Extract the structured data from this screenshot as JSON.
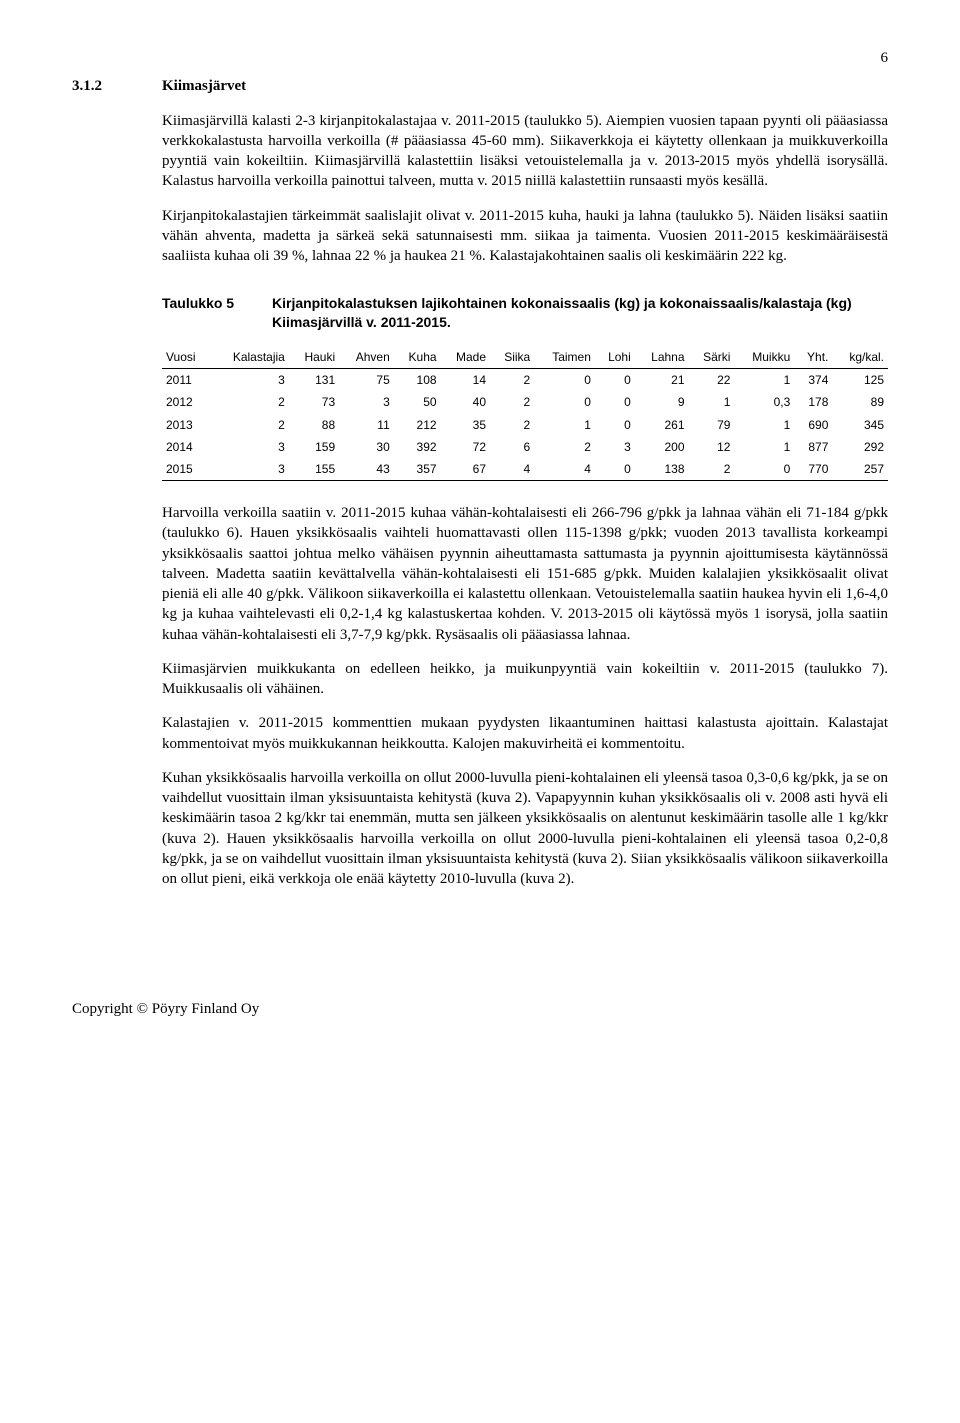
{
  "page_number": "6",
  "section": {
    "number": "3.1.2",
    "title": "Kiimasjärvet"
  },
  "paragraphs": {
    "p1": "Kiimasjärvillä kalasti 2-3 kirjanpitokalastajaa v. 2011-2015 (taulukko 5). Aiempien vuosien tapaan pyynti oli pääasiassa verkkokalastusta harvoilla verkoilla (# pääasiassa 45-60 mm). Siikaverkkoja ei käytetty ollenkaan ja muikkuverkoilla pyyntiä vain kokeiltiin. Kiimasjärvillä kalastettiin lisäksi vetouistelemalla ja v. 2013-2015 myös yhdellä isorysällä. Kalastus harvoilla verkoilla painottui talveen, mutta v. 2015 niillä kalastettiin runsaasti myös kesällä.",
    "p2": "Kirjanpitokalastajien tärkeimmät saalislajit olivat v. 2011-2015 kuha, hauki ja lahna (taulukko 5). Näiden lisäksi saatiin vähän ahventa, madetta ja särkeä sekä satunnaisesti mm. siikaa ja taimenta. Vuosien 2011-2015 keskimääräisestä saaliista kuhaa oli 39 %, lahnaa 22 % ja haukea 21 %. Kalastajakohtainen saalis oli keskimäärin 222 kg.",
    "p3": "Harvoilla verkoilla saatiin v. 2011-2015 kuhaa vähän-kohtalaisesti eli 266-796 g/pkk ja lahnaa vähän eli 71-184 g/pkk (taulukko 6). Hauen yksikkösaalis vaihteli huomattavasti ollen 115-1398 g/pkk; vuoden 2013 tavallista korkeampi yksikkösaalis saattoi johtua melko vähäisen pyynnin aiheuttamasta sattumasta ja pyynnin ajoittumisesta käytännössä talveen. Madetta saatiin kevättalvella vähän-kohtalaisesti eli 151-685 g/pkk. Muiden kalalajien yksikkösaalit olivat pieniä eli alle 40 g/pkk. Välikoon siikaverkoilla ei kalastettu ollenkaan. Vetouistelemalla saatiin haukea hyvin eli 1,6-4,0 kg ja kuhaa vaihtelevasti eli 0,2-1,4 kg kalastuskertaa kohden. V. 2013-2015 oli käytössä myös 1 isorysä, jolla saatiin kuhaa vähän-kohtalaisesti eli 3,7-7,9 kg/pkk. Rysäsaalis oli pääasiassa lahnaa.",
    "p4": "Kiimasjärvien muikkukanta on edelleen heikko, ja muikunpyyntiä vain kokeiltiin v. 2011-2015 (taulukko 7). Muikkusaalis oli vähäinen.",
    "p5": "Kalastajien v. 2011-2015 kommenttien mukaan pyydysten likaantuminen haittasi kalastusta ajoittain. Kalastajat kommentoivat myös muikkukannan heikkoutta. Kalojen makuvirheitä ei kommentoitu.",
    "p6": "Kuhan yksikkösaalis harvoilla verkoilla on ollut 2000-luvulla pieni-kohtalainen eli yleensä tasoa 0,3-0,6 kg/pkk, ja se on vaihdellut vuosittain ilman yksisuuntaista kehitystä (kuva 2). Vapapyynnin kuhan yksikkösaalis oli v. 2008 asti hyvä eli keskimäärin tasoa 2 kg/kkr tai enemmän, mutta sen jälkeen yksikkösaalis on alentunut keskimäärin tasolle alle 1 kg/kkr (kuva 2). Hauen yksikkösaalis harvoilla verkoilla on ollut 2000-luvulla pieni-kohtalainen eli yleensä tasoa 0,2-0,8 kg/pkk, ja se on vaihdellut vuosittain ilman yksisuuntaista kehitystä (kuva 2). Siian yksikkösaalis välikoon siikaverkoilla on ollut pieni, eikä verkkoja ole enää käytetty 2010-luvulla (kuva 2)."
  },
  "table5": {
    "label": "Taulukko 5",
    "caption": "Kirjanpitokalastuksen lajikohtainen kokonaissaalis (kg) ja kokonaissaalis/kalastaja (kg) Kiimasjärvillä v. 2011-2015.",
    "columns": [
      "Vuosi",
      "Kalastajia",
      "Hauki",
      "Ahven",
      "Kuha",
      "Made",
      "Siika",
      "Taimen",
      "Lohi",
      "Lahna",
      "Särki",
      "Muikku",
      "Yht.",
      "kg/kal."
    ],
    "rows": [
      [
        "2011",
        "3",
        "131",
        "75",
        "108",
        "14",
        "2",
        "0",
        "0",
        "21",
        "22",
        "1",
        "374",
        "125"
      ],
      [
        "2012",
        "2",
        "73",
        "3",
        "50",
        "40",
        "2",
        "0",
        "0",
        "9",
        "1",
        "0,3",
        "178",
        "89"
      ],
      [
        "2013",
        "2",
        "88",
        "11",
        "212",
        "35",
        "2",
        "1",
        "0",
        "261",
        "79",
        "1",
        "690",
        "345"
      ],
      [
        "2014",
        "3",
        "159",
        "30",
        "392",
        "72",
        "6",
        "2",
        "3",
        "200",
        "12",
        "1",
        "877",
        "292"
      ],
      [
        "2015",
        "3",
        "155",
        "43",
        "357",
        "67",
        "4",
        "4",
        "0",
        "138",
        "2",
        "0",
        "770",
        "257"
      ]
    ]
  },
  "footer": "Copyright © Pöyry Finland Oy"
}
